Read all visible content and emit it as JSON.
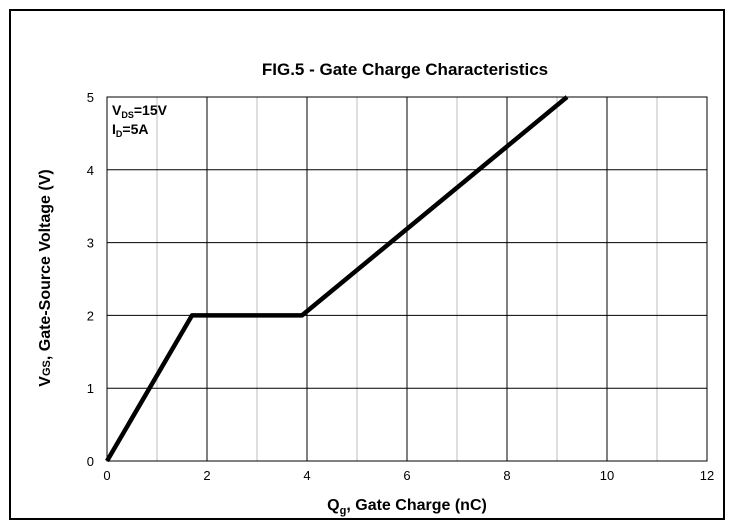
{
  "chart_data": {
    "type": "line",
    "title": "FIG.5 - Gate Charge Characteristics",
    "xlabel": {
      "main": "Q",
      "sub": "g",
      "rest": ", Gate Charge (nC)"
    },
    "ylabel": {
      "main": "V",
      "sub": "GS",
      "rest": ", Gate-Source Voltage (V)"
    },
    "xlim": [
      0,
      12
    ],
    "ylim": [
      0,
      5
    ],
    "x_ticks": [
      0,
      2,
      4,
      6,
      8,
      10,
      12
    ],
    "y_ticks": [
      0,
      1,
      2,
      3,
      4,
      5
    ],
    "grid": true,
    "series": [
      {
        "color": "#000000",
        "points": [
          [
            0,
            0
          ],
          [
            1.7,
            2.0
          ],
          [
            3.9,
            2.0
          ],
          [
            9.2,
            5.0
          ]
        ]
      }
    ],
    "annotations": [
      {
        "main": "V",
        "sub": "DS",
        "rest": "=15V"
      },
      {
        "main": "I",
        "sub": "D",
        "rest": "=5A"
      }
    ]
  }
}
